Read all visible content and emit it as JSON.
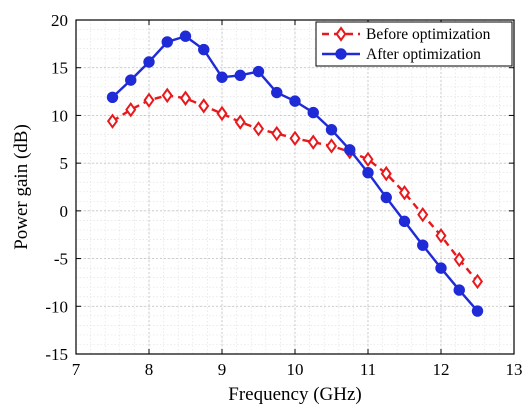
{
  "chart_data": {
    "type": "line",
    "title": "",
    "xlabel": "Frequency (GHz)",
    "ylabel": "Power gain (dB)",
    "xlim": [
      7,
      13
    ],
    "ylim": [
      -15,
      20
    ],
    "xticks": [
      7,
      8,
      9,
      10,
      11,
      12,
      13
    ],
    "yticks": [
      -15,
      -10,
      -5,
      0,
      5,
      10,
      15,
      20
    ],
    "grid": "major and minor, dotted",
    "legend_position": "top-right",
    "x": [
      7.5,
      7.75,
      8.0,
      8.25,
      8.5,
      8.75,
      9.0,
      9.25,
      9.5,
      9.75,
      10.0,
      10.25,
      10.5,
      10.75,
      11.0,
      11.25,
      11.5,
      11.75,
      12.0,
      12.25,
      12.5
    ],
    "series": [
      {
        "name": "Before optimization",
        "color": "#e8191c",
        "line_style": "dashed",
        "marker": "diamond-open",
        "values": [
          9.4,
          10.6,
          11.6,
          12.1,
          11.8,
          11.0,
          10.2,
          9.3,
          8.6,
          8.1,
          7.6,
          7.2,
          6.8,
          6.2,
          5.4,
          3.9,
          1.9,
          -0.4,
          -2.6,
          -5.1,
          -7.4
        ]
      },
      {
        "name": "After optimization",
        "color": "#1f2bd6",
        "line_style": "solid",
        "marker": "circle-filled",
        "values": [
          11.9,
          13.7,
          15.6,
          17.7,
          18.3,
          16.9,
          14.0,
          14.2,
          14.6,
          12.4,
          11.5,
          10.3,
          8.5,
          6.4,
          4.0,
          1.4,
          -1.1,
          -3.6,
          -6.0,
          -8.3,
          -10.5
        ]
      }
    ]
  }
}
